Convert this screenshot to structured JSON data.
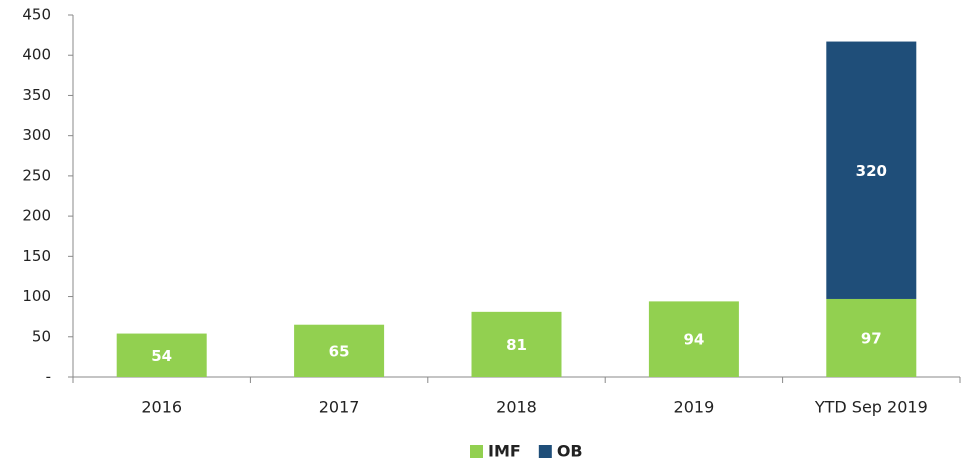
{
  "chart_data": {
    "type": "bar",
    "stacked": true,
    "categories": [
      "2016",
      "2017",
      "2018",
      "2019",
      "YTD Sep 2019"
    ],
    "series": [
      {
        "name": "IMF",
        "color": "#92d050",
        "values": [
          54,
          65,
          81,
          94,
          97
        ]
      },
      {
        "name": "OB",
        "color": "#1f4e79",
        "values": [
          null,
          null,
          null,
          null,
          320
        ]
      }
    ],
    "ylim": [
      0,
      450
    ],
    "yticks": [
      {
        "value": 0,
        "label": "-"
      },
      50,
      100,
      150,
      200,
      250,
      300,
      350,
      400,
      450
    ],
    "grid": false,
    "legend": "bottom"
  }
}
